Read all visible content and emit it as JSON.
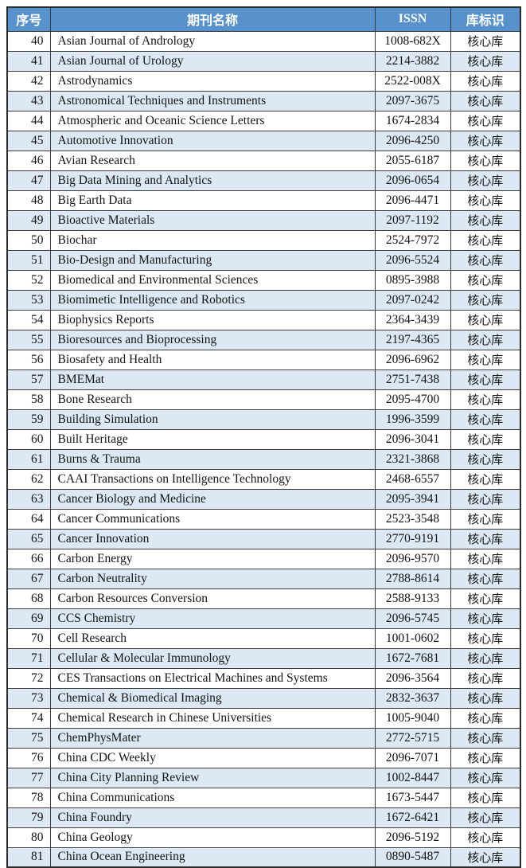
{
  "table": {
    "headers": {
      "num": "序号",
      "name": "期刊名称",
      "issn": "ISSN",
      "tag": "库标识"
    },
    "colors": {
      "header_bg": "#5792cc",
      "header_text": "#ffffff",
      "stripe_bg": "#dce8f3",
      "row_bg": "#ffffff",
      "border": "#3a3a3a"
    },
    "rows": [
      {
        "num": "40",
        "name": "Asian Journal of Andrology",
        "issn": "1008-682X",
        "tag": "核心库"
      },
      {
        "num": "41",
        "name": "Asian Journal of Urology",
        "issn": "2214-3882",
        "tag": "核心库"
      },
      {
        "num": "42",
        "name": "Astrodynamics",
        "issn": "2522-008X",
        "tag": "核心库"
      },
      {
        "num": "43",
        "name": "Astronomical Techniques and Instruments",
        "issn": "2097-3675",
        "tag": "核心库"
      },
      {
        "num": "44",
        "name": "Atmospheric and Oceanic Science Letters",
        "issn": "1674-2834",
        "tag": "核心库"
      },
      {
        "num": "45",
        "name": "Automotive Innovation",
        "issn": "2096-4250",
        "tag": "核心库"
      },
      {
        "num": "46",
        "name": "Avian Research",
        "issn": "2055-6187",
        "tag": "核心库"
      },
      {
        "num": "47",
        "name": "Big Data Mining and Analytics",
        "issn": "2096-0654",
        "tag": "核心库"
      },
      {
        "num": "48",
        "name": "Big Earth Data",
        "issn": "2096-4471",
        "tag": "核心库"
      },
      {
        "num": "49",
        "name": "Bioactive Materials",
        "issn": "2097-1192",
        "tag": "核心库"
      },
      {
        "num": "50",
        "name": "Biochar",
        "issn": "2524-7972",
        "tag": "核心库"
      },
      {
        "num": "51",
        "name": "Bio-Design and Manufacturing",
        "issn": "2096-5524",
        "tag": "核心库"
      },
      {
        "num": "52",
        "name": "Biomedical and Environmental Sciences",
        "issn": "0895-3988",
        "tag": "核心库"
      },
      {
        "num": "53",
        "name": "Biomimetic Intelligence and Robotics",
        "issn": "2097-0242",
        "tag": "核心库"
      },
      {
        "num": "54",
        "name": "Biophysics Reports",
        "issn": "2364-3439",
        "tag": "核心库"
      },
      {
        "num": "55",
        "name": "Bioresources and Bioprocessing",
        "issn": "2197-4365",
        "tag": "核心库"
      },
      {
        "num": "56",
        "name": "Biosafety and Health",
        "issn": "2096-6962",
        "tag": "核心库"
      },
      {
        "num": "57",
        "name": "BMEMat",
        "issn": "2751-7438",
        "tag": "核心库"
      },
      {
        "num": "58",
        "name": "Bone Research",
        "issn": "2095-4700",
        "tag": "核心库"
      },
      {
        "num": "59",
        "name": "Building Simulation",
        "issn": "1996-3599",
        "tag": "核心库"
      },
      {
        "num": "60",
        "name": "Built Heritage",
        "issn": "2096-3041",
        "tag": "核心库"
      },
      {
        "num": "61",
        "name": "Burns & Trauma",
        "issn": "2321-3868",
        "tag": "核心库"
      },
      {
        "num": "62",
        "name": "CAAI Transactions on Intelligence Technology",
        "issn": "2468-6557",
        "tag": "核心库"
      },
      {
        "num": "63",
        "name": "Cancer Biology and Medicine",
        "issn": "2095-3941",
        "tag": "核心库"
      },
      {
        "num": "64",
        "name": "Cancer Communications",
        "issn": "2523-3548",
        "tag": "核心库"
      },
      {
        "num": "65",
        "name": "Cancer Innovation",
        "issn": "2770-9191",
        "tag": "核心库"
      },
      {
        "num": "66",
        "name": "Carbon Energy",
        "issn": "2096-9570",
        "tag": "核心库"
      },
      {
        "num": "67",
        "name": "Carbon Neutrality",
        "issn": "2788-8614",
        "tag": "核心库"
      },
      {
        "num": "68",
        "name": "Carbon Resources Conversion",
        "issn": "2588-9133",
        "tag": "核心库"
      },
      {
        "num": "69",
        "name": "CCS Chemistry",
        "issn": "2096-5745",
        "tag": "核心库"
      },
      {
        "num": "70",
        "name": "Cell Research",
        "issn": "1001-0602",
        "tag": "核心库"
      },
      {
        "num": "71",
        "name": "Cellular & Molecular Immunology",
        "issn": "1672-7681",
        "tag": "核心库"
      },
      {
        "num": "72",
        "name": "CES Transactions on Electrical Machines and Systems",
        "issn": "2096-3564",
        "tag": "核心库"
      },
      {
        "num": "73",
        "name": "Chemical & Biomedical Imaging",
        "issn": "2832-3637",
        "tag": "核心库"
      },
      {
        "num": "74",
        "name": "Chemical Research in Chinese Universities",
        "issn": "1005-9040",
        "tag": "核心库"
      },
      {
        "num": "75",
        "name": "ChemPhysMater",
        "issn": "2772-5715",
        "tag": "核心库"
      },
      {
        "num": "76",
        "name": "China CDC Weekly",
        "issn": "2096-7071",
        "tag": "核心库"
      },
      {
        "num": "77",
        "name": "China City Planning Review",
        "issn": "1002-8447",
        "tag": "核心库"
      },
      {
        "num": "78",
        "name": "China Communications",
        "issn": "1673-5447",
        "tag": "核心库"
      },
      {
        "num": "79",
        "name": "China Foundry",
        "issn": "1672-6421",
        "tag": "核心库"
      },
      {
        "num": "80",
        "name": "China Geology",
        "issn": "2096-5192",
        "tag": "核心库"
      },
      {
        "num": "81",
        "name": "China Ocean Engineering",
        "issn": "0890-5487",
        "tag": "核心库"
      }
    ]
  }
}
